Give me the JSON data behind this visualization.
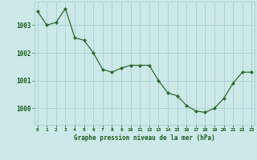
{
  "x": [
    0,
    1,
    2,
    3,
    4,
    5,
    6,
    7,
    8,
    9,
    10,
    11,
    12,
    13,
    14,
    15,
    16,
    17,
    18,
    19,
    20,
    21,
    22,
    23
  ],
  "y": [
    1003.5,
    1003.0,
    1003.1,
    1003.6,
    1002.55,
    1002.45,
    1002.0,
    1001.4,
    1001.3,
    1001.45,
    1001.55,
    1001.55,
    1001.55,
    1001.0,
    1000.55,
    1000.45,
    1000.1,
    999.9,
    999.85,
    1000.0,
    1000.35,
    1000.9,
    1001.3,
    1001.3
  ],
  "line_color": "#2d6a2d",
  "marker_color": "#2d6a2d",
  "bg_color": "#cce8e8",
  "grid_color": "#aacfcf",
  "axis_label_color": "#1a5c1a",
  "tick_label_color": "#1a5c1a",
  "xlabel": "Graphe pression niveau de la mer (hPa)",
  "ylim": [
    999.4,
    1003.85
  ],
  "yticks": [
    1000,
    1001,
    1002,
    1003
  ],
  "xticks": [
    0,
    1,
    2,
    3,
    4,
    5,
    6,
    7,
    8,
    9,
    10,
    11,
    12,
    13,
    14,
    15,
    16,
    17,
    18,
    19,
    20,
    21,
    22,
    23
  ]
}
